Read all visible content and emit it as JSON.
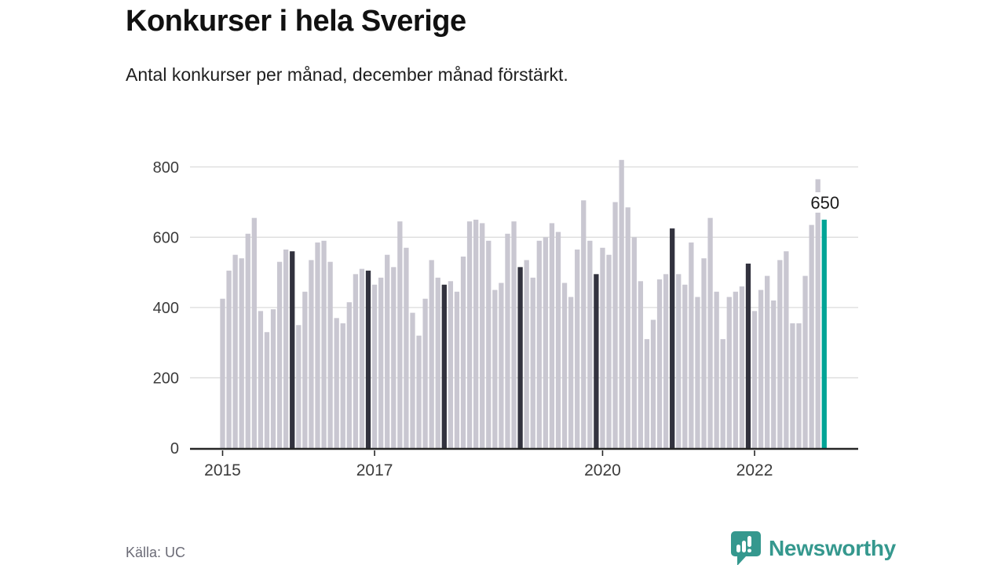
{
  "header": {
    "title": "Konkurser i hela Sverige",
    "subtitle": "Antal konkurser per månad, december månad förstärkt."
  },
  "footer": {
    "source": "Källa: UC",
    "brand": "Newsworthy"
  },
  "chart_data": {
    "type": "bar",
    "title": "Konkurser i hela Sverige",
    "subtitle": "Antal konkurser per månad, december månad förstärkt.",
    "source": "Källa: UC",
    "frequency": "monthly",
    "x_range": [
      "2015-01",
      "2022-12"
    ],
    "ylim": [
      0,
      800
    ],
    "yticks": [
      0,
      200,
      400,
      600,
      800
    ],
    "xticks": [
      {
        "label": "2015",
        "month_index": 0
      },
      {
        "label": "2017",
        "month_index": 24
      },
      {
        "label": "2020",
        "month_index": 60
      },
      {
        "label": "2022",
        "month_index": 84
      }
    ],
    "grid": "horizontal",
    "series": [
      {
        "year": 2015,
        "values": [
          425,
          505,
          550,
          540,
          610,
          655,
          390,
          330,
          395,
          530,
          565,
          560
        ]
      },
      {
        "year": 2016,
        "values": [
          350,
          445,
          535,
          585,
          590,
          530,
          370,
          355,
          415,
          495,
          510,
          505
        ]
      },
      {
        "year": 2017,
        "values": [
          465,
          485,
          550,
          515,
          645,
          570,
          385,
          320,
          425,
          535,
          485,
          465
        ]
      },
      {
        "year": 2018,
        "values": [
          475,
          445,
          545,
          645,
          650,
          640,
          590,
          450,
          470,
          610,
          645,
          515
        ]
      },
      {
        "year": 2019,
        "values": [
          535,
          485,
          590,
          600,
          640,
          615,
          470,
          430,
          565,
          705,
          590,
          495
        ]
      },
      {
        "year": 2020,
        "values": [
          570,
          550,
          700,
          820,
          685,
          600,
          475,
          310,
          365,
          480,
          495,
          625
        ]
      },
      {
        "year": 2021,
        "values": [
          495,
          465,
          585,
          430,
          540,
          655,
          445,
          310,
          430,
          445,
          460,
          525
        ]
      },
      {
        "year": 2022,
        "values": [
          390,
          450,
          490,
          420,
          535,
          560,
          355,
          355,
          490,
          635,
          765,
          650
        ]
      }
    ],
    "december_highlighted": true,
    "latest": {
      "month": "2022-12",
      "value": 650,
      "label": "650"
    },
    "colors": {
      "bar": "#c9c7d1",
      "december": "#32323e",
      "latest": "#00a496",
      "gridline": "#dcdcdc",
      "axis": "#262626",
      "tick_text": "#3c3c3c",
      "annotation_text": "#1a1a1a",
      "brand_teal": "#35988e"
    }
  }
}
